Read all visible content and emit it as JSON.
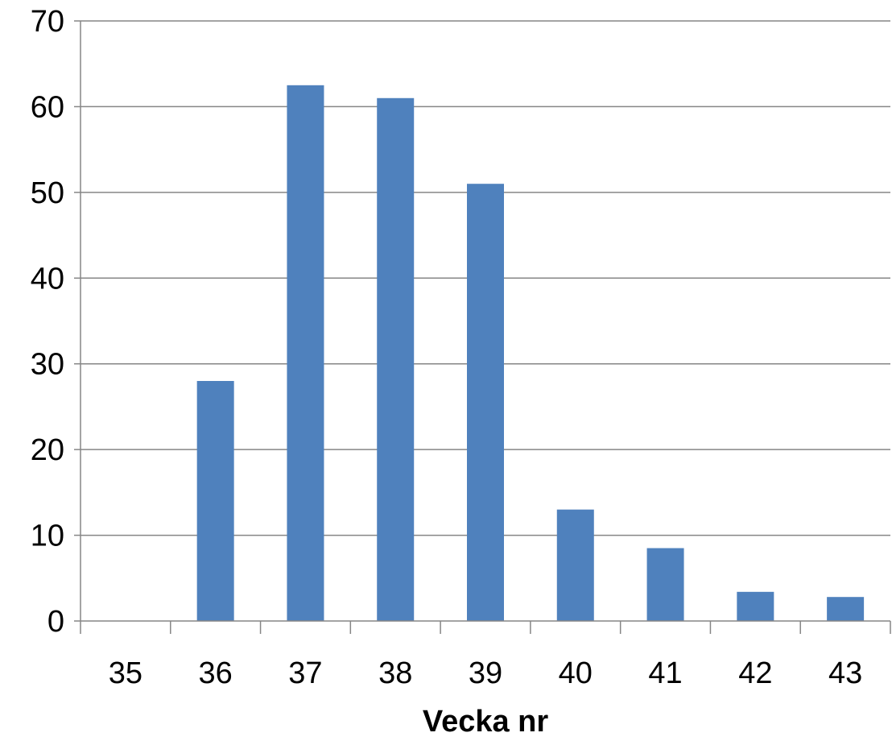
{
  "chart_data": {
    "type": "bar",
    "title": "",
    "xlabel": "Vecka nr",
    "ylabel": "",
    "categories": [
      "35",
      "36",
      "37",
      "38",
      "39",
      "40",
      "41",
      "42",
      "43"
    ],
    "values": [
      0,
      28,
      62.5,
      61,
      51,
      13,
      8.5,
      3.4,
      2.8
    ],
    "ylim": [
      0,
      70
    ],
    "yticks": [
      "0",
      "10",
      "20",
      "30",
      "40",
      "50",
      "60",
      "70"
    ],
    "grid": true,
    "legend": "none",
    "bar_color": "#4f81bd",
    "grid_color": "#868686"
  }
}
